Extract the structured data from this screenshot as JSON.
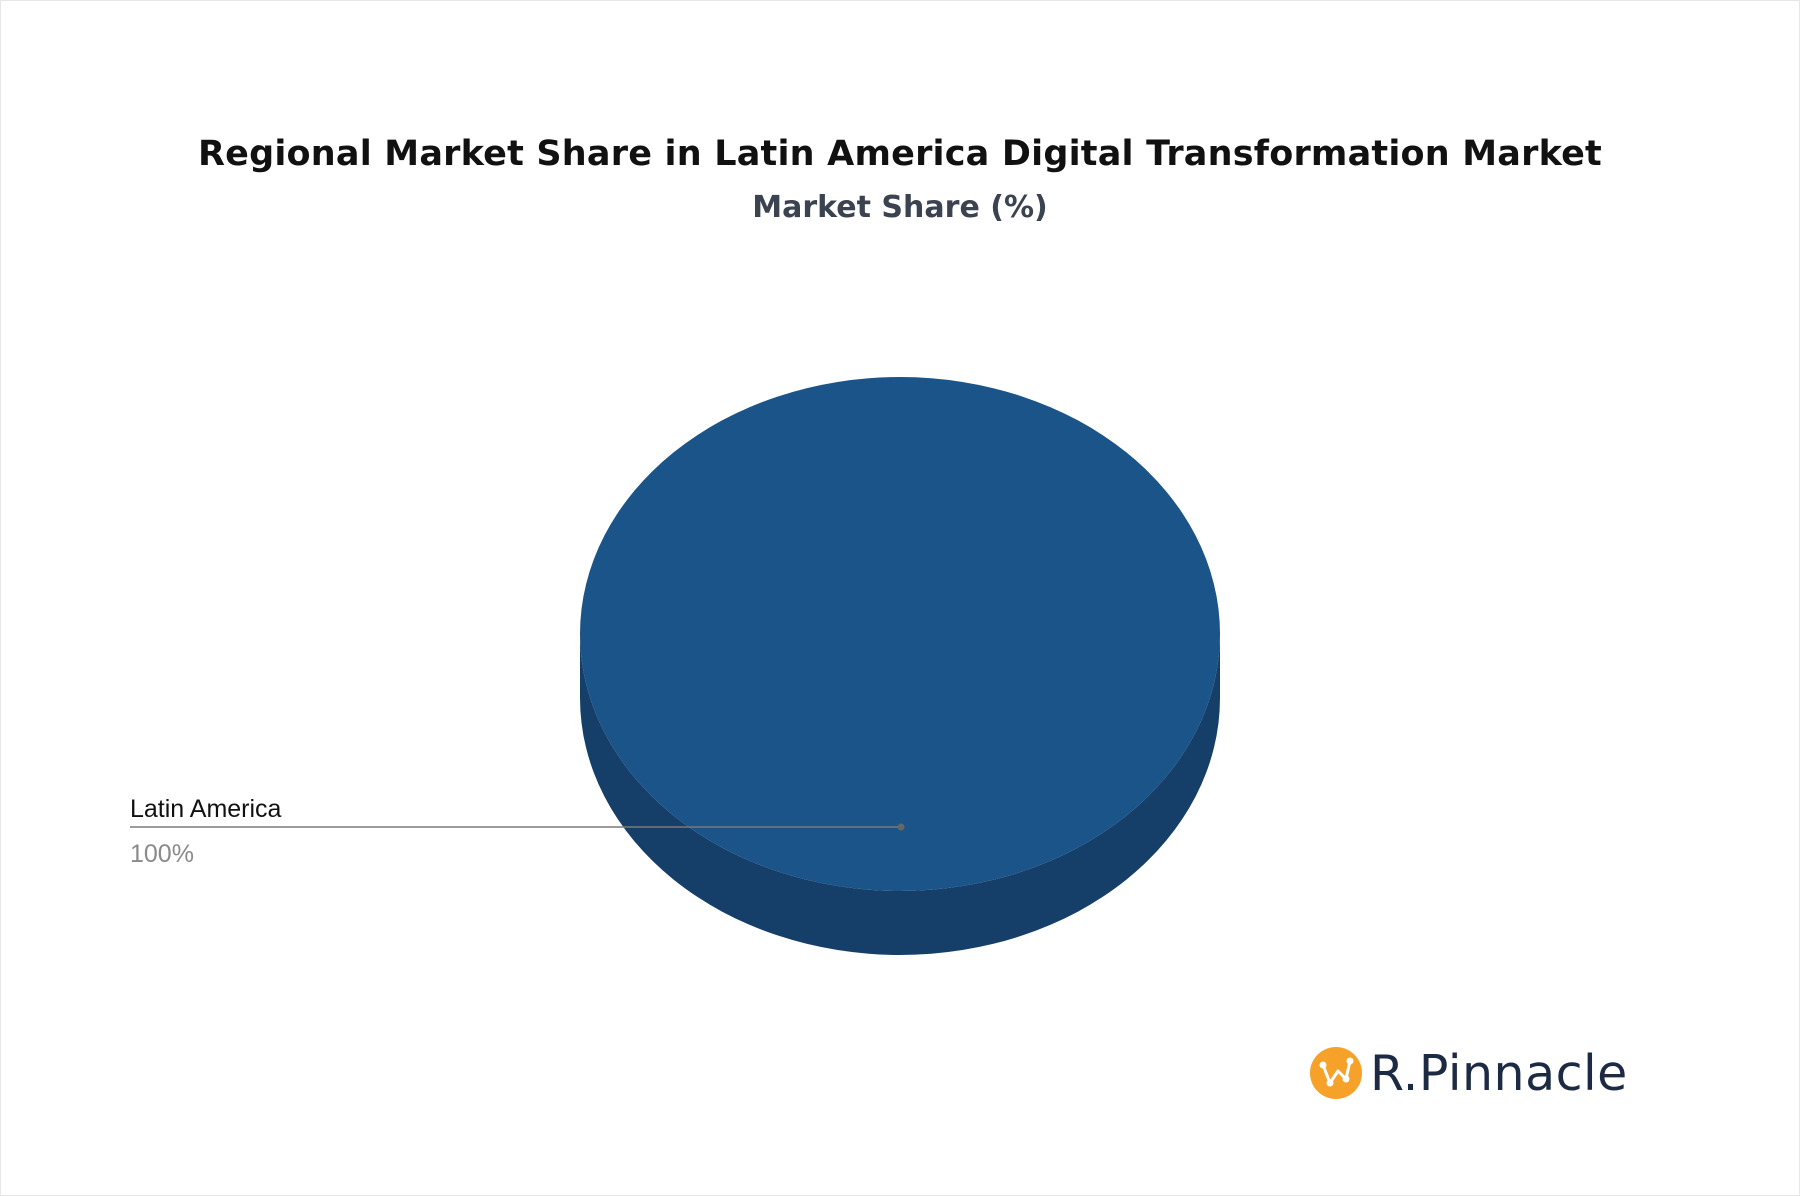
{
  "chart_data": {
    "type": "pie",
    "title": "Regional Market Share in Latin America Digital Transformation Market",
    "subtitle": "Market Share (%)",
    "slices": [
      {
        "label": "Latin America",
        "value": 100,
        "value_label": "100%",
        "color": "#1b5488"
      }
    ],
    "shade_color": "#153f69",
    "style": "3d"
  },
  "brand": {
    "name": "R.Pinnacle",
    "icon": "pinnacle-logo-icon",
    "accent": "#f5a12a"
  }
}
